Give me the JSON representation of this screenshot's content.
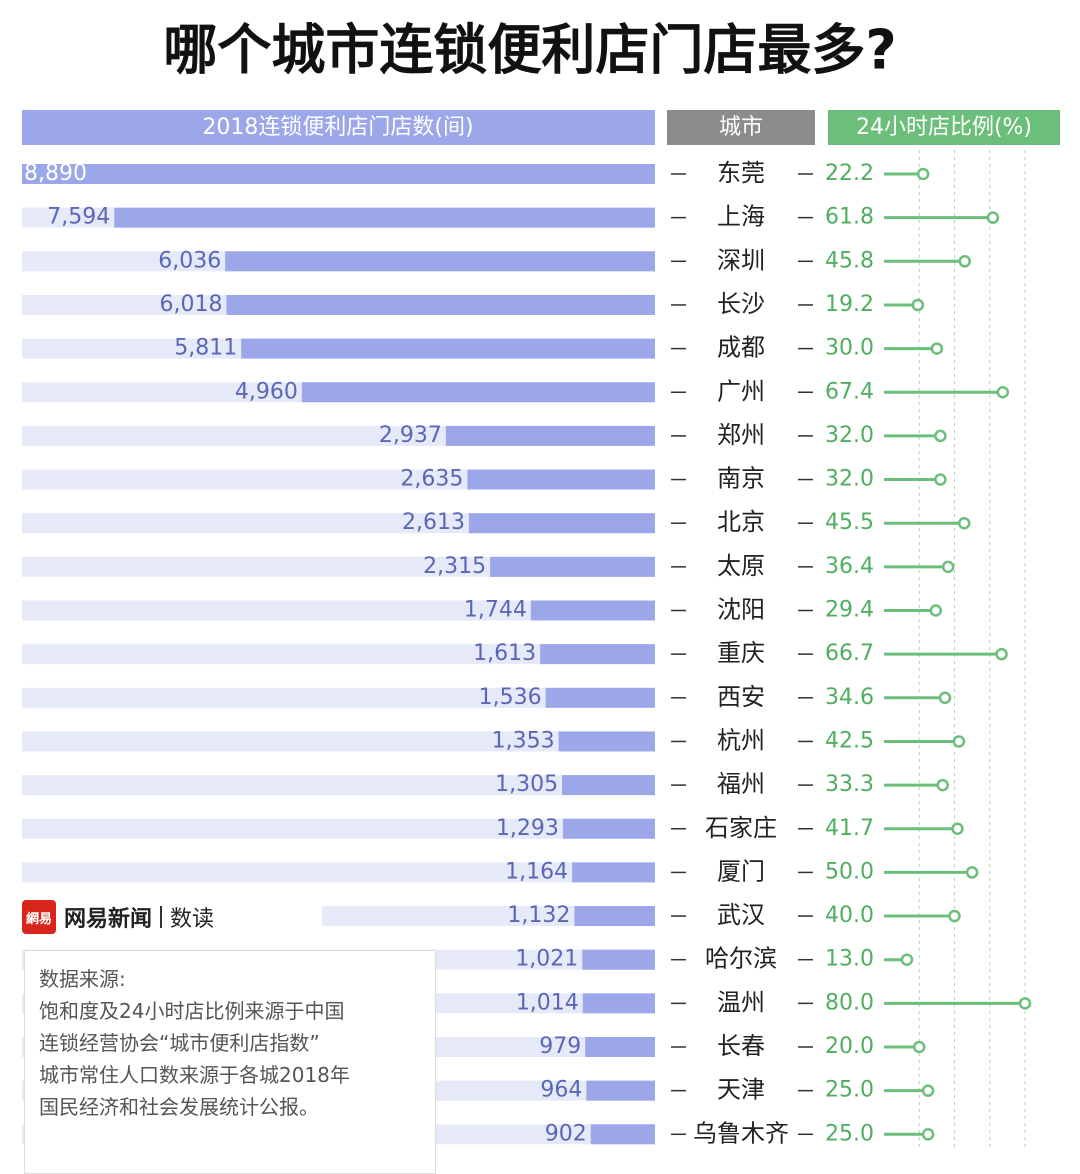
{
  "title": "哪个城市连锁便利店门店最多?",
  "chart_data": [
    {
      "type": "bar",
      "header": "2018连锁便利店门店数(间)",
      "category_header": "城市",
      "categories": [
        "东莞",
        "上海",
        "深圳",
        "长沙",
        "成都",
        "广州",
        "郑州",
        "南京",
        "北京",
        "太原",
        "沈阳",
        "重庆",
        "西安",
        "杭州",
        "福州",
        "石家庄",
        "厦门",
        "武汉",
        "哈尔滨",
        "温州",
        "长春",
        "天津",
        "乌鲁木齐"
      ],
      "values": [
        8890,
        7594,
        6036,
        6018,
        5811,
        4960,
        2937,
        2635,
        2613,
        2315,
        1744,
        1613,
        1536,
        1353,
        1305,
        1293,
        1164,
        1132,
        1021,
        1014,
        979,
        964,
        902
      ],
      "value_labels": [
        "8,890",
        "7,594",
        "6,036",
        "6,018",
        "5,811",
        "4,960",
        "2,937",
        "2,635",
        "2,613",
        "2,315",
        "1,744",
        "1,613",
        "1,536",
        "1,353",
        "1,305",
        "1,293",
        "1,164",
        "1,132",
        "1,021",
        "1,014",
        "979",
        "964",
        "902"
      ],
      "color": "#9ba7e8",
      "xlim": [
        0,
        8890
      ]
    },
    {
      "type": "lollipop",
      "header": "24小时店比例(%)",
      "values": [
        22.2,
        61.8,
        45.8,
        19.2,
        30,
        67.4,
        32,
        32,
        45.5,
        36.4,
        29.4,
        66.7,
        34.6,
        42.5,
        33.3,
        41.7,
        50,
        40,
        13,
        80,
        20,
        25,
        25
      ],
      "value_labels": [
        "22.2",
        "61.8",
        "45.8",
        "19.2",
        "30.0",
        "67.4",
        "32.0",
        "32.0",
        "45.5",
        "36.4",
        "29.4",
        "66.7",
        "34.6",
        "42.5",
        "33.3",
        "41.7",
        "50.0",
        "40.0",
        "13.0",
        "80.0",
        "20.0",
        "25.0",
        "25.0"
      ],
      "color": "#6cbf7a",
      "xlim": [
        0,
        80
      ],
      "xticks": [
        20,
        40,
        60,
        80
      ],
      "grid": true
    }
  ],
  "logo": {
    "icon": "網易",
    "brand": "网易新闻",
    "section": "数读"
  },
  "source": {
    "title": "数据来源:",
    "lines": [
      "饱和度及24小时店比例来源于中国",
      "连锁经营协会“城市便利店指数”",
      "城市常住人口数来源于各城2018年",
      "国民经济和社会发展统计公报。"
    ]
  }
}
